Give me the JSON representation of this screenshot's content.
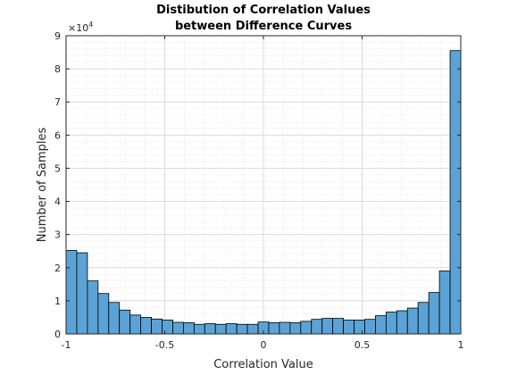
{
  "chart_data": {
    "type": "bar",
    "title_line1": "Distibution of Correlation Values",
    "title_line2": "between Difference Curves",
    "xlabel": "Correlation Value",
    "ylabel": "Number of Samples",
    "y_exponent_label": "×10",
    "y_exponent": "4",
    "xlim": [
      -1,
      1
    ],
    "ylim": [
      0,
      90000
    ],
    "x_ticks": [
      -1,
      -0.5,
      0,
      0.5,
      1
    ],
    "x_tick_labels": [
      "-1",
      "-0.5",
      "0",
      "0.5",
      "1"
    ],
    "y_ticks": [
      0,
      10000,
      20000,
      30000,
      40000,
      50000,
      60000,
      70000,
      80000,
      90000
    ],
    "y_tick_labels": [
      "0",
      "1",
      "2",
      "3",
      "4",
      "5",
      "6",
      "7",
      "8",
      "9"
    ],
    "grid": true,
    "minor_grid": true,
    "bar_color": "#5BA3D6",
    "bin_width": 0.05,
    "bin_edges_start": -1,
    "values": [
      25200,
      24500,
      16000,
      12200,
      9500,
      7200,
      5700,
      5000,
      4500,
      4200,
      3500,
      3400,
      2900,
      3100,
      2900,
      3100,
      2900,
      2900,
      3600,
      3400,
      3500,
      3400,
      3800,
      4400,
      4700,
      4700,
      4200,
      4200,
      4400,
      5500,
      6600,
      7000,
      7800,
      9500,
      12500,
      19000,
      85500
    ]
  }
}
